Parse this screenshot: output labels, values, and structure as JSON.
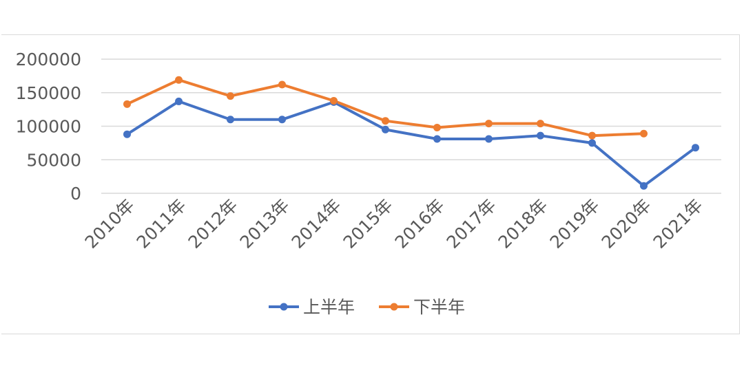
{
  "chart_data": {
    "type": "line",
    "categories": [
      "2010年",
      "2011年",
      "2012年",
      "2013年",
      "2014年",
      "2015年",
      "2016年",
      "2017年",
      "2018年",
      "2019年",
      "2020年",
      "2021年"
    ],
    "series": [
      {
        "name": "上半年",
        "color": "#4472c4",
        "values": [
          88000,
          137000,
          110000,
          110000,
          136000,
          95000,
          81000,
          81000,
          86000,
          75000,
          11000,
          68000
        ]
      },
      {
        "name": "下半年",
        "color": "#ed7d31",
        "values": [
          133000,
          169000,
          145000,
          162000,
          138000,
          108000,
          98000,
          104000,
          104000,
          86000,
          89000,
          null
        ]
      }
    ],
    "y_ticks": [
      "0",
      "50000",
      "100000",
      "150000",
      "200000"
    ],
    "ylim": [
      0,
      200000
    ],
    "grid": true,
    "legend_position": "bottom",
    "title": "",
    "xlabel": "",
    "ylabel": ""
  }
}
